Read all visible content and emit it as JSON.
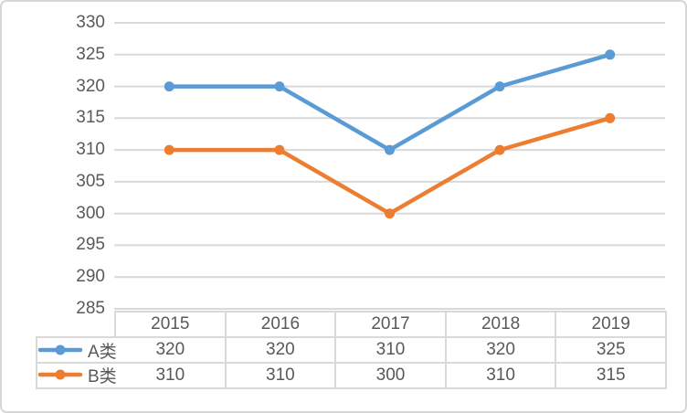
{
  "chart_data": {
    "type": "line",
    "title": "",
    "xlabel": "",
    "ylabel": "",
    "categories": [
      "2015",
      "2016",
      "2017",
      "2018",
      "2019"
    ],
    "series": [
      {
        "name": "A类",
        "values": [
          320,
          320,
          310,
          320,
          325
        ],
        "color": "#5B9BD5"
      },
      {
        "name": "B类",
        "values": [
          310,
          310,
          300,
          310,
          315
        ],
        "color": "#ED7D31"
      }
    ],
    "ylim": [
      285,
      330
    ],
    "ytick_step": 5,
    "yticks": [
      330,
      325,
      320,
      315,
      310,
      305,
      300,
      295,
      290,
      285
    ],
    "grid": true,
    "marker": "circle",
    "legend_position": "table-left",
    "data_table_shown": true
  },
  "colors": {
    "grid": "#D9D9D9",
    "table_border": "#D9D9D9",
    "text": "#595959",
    "background": "#FFFFFF",
    "outer_border": "#D6D6D6"
  }
}
